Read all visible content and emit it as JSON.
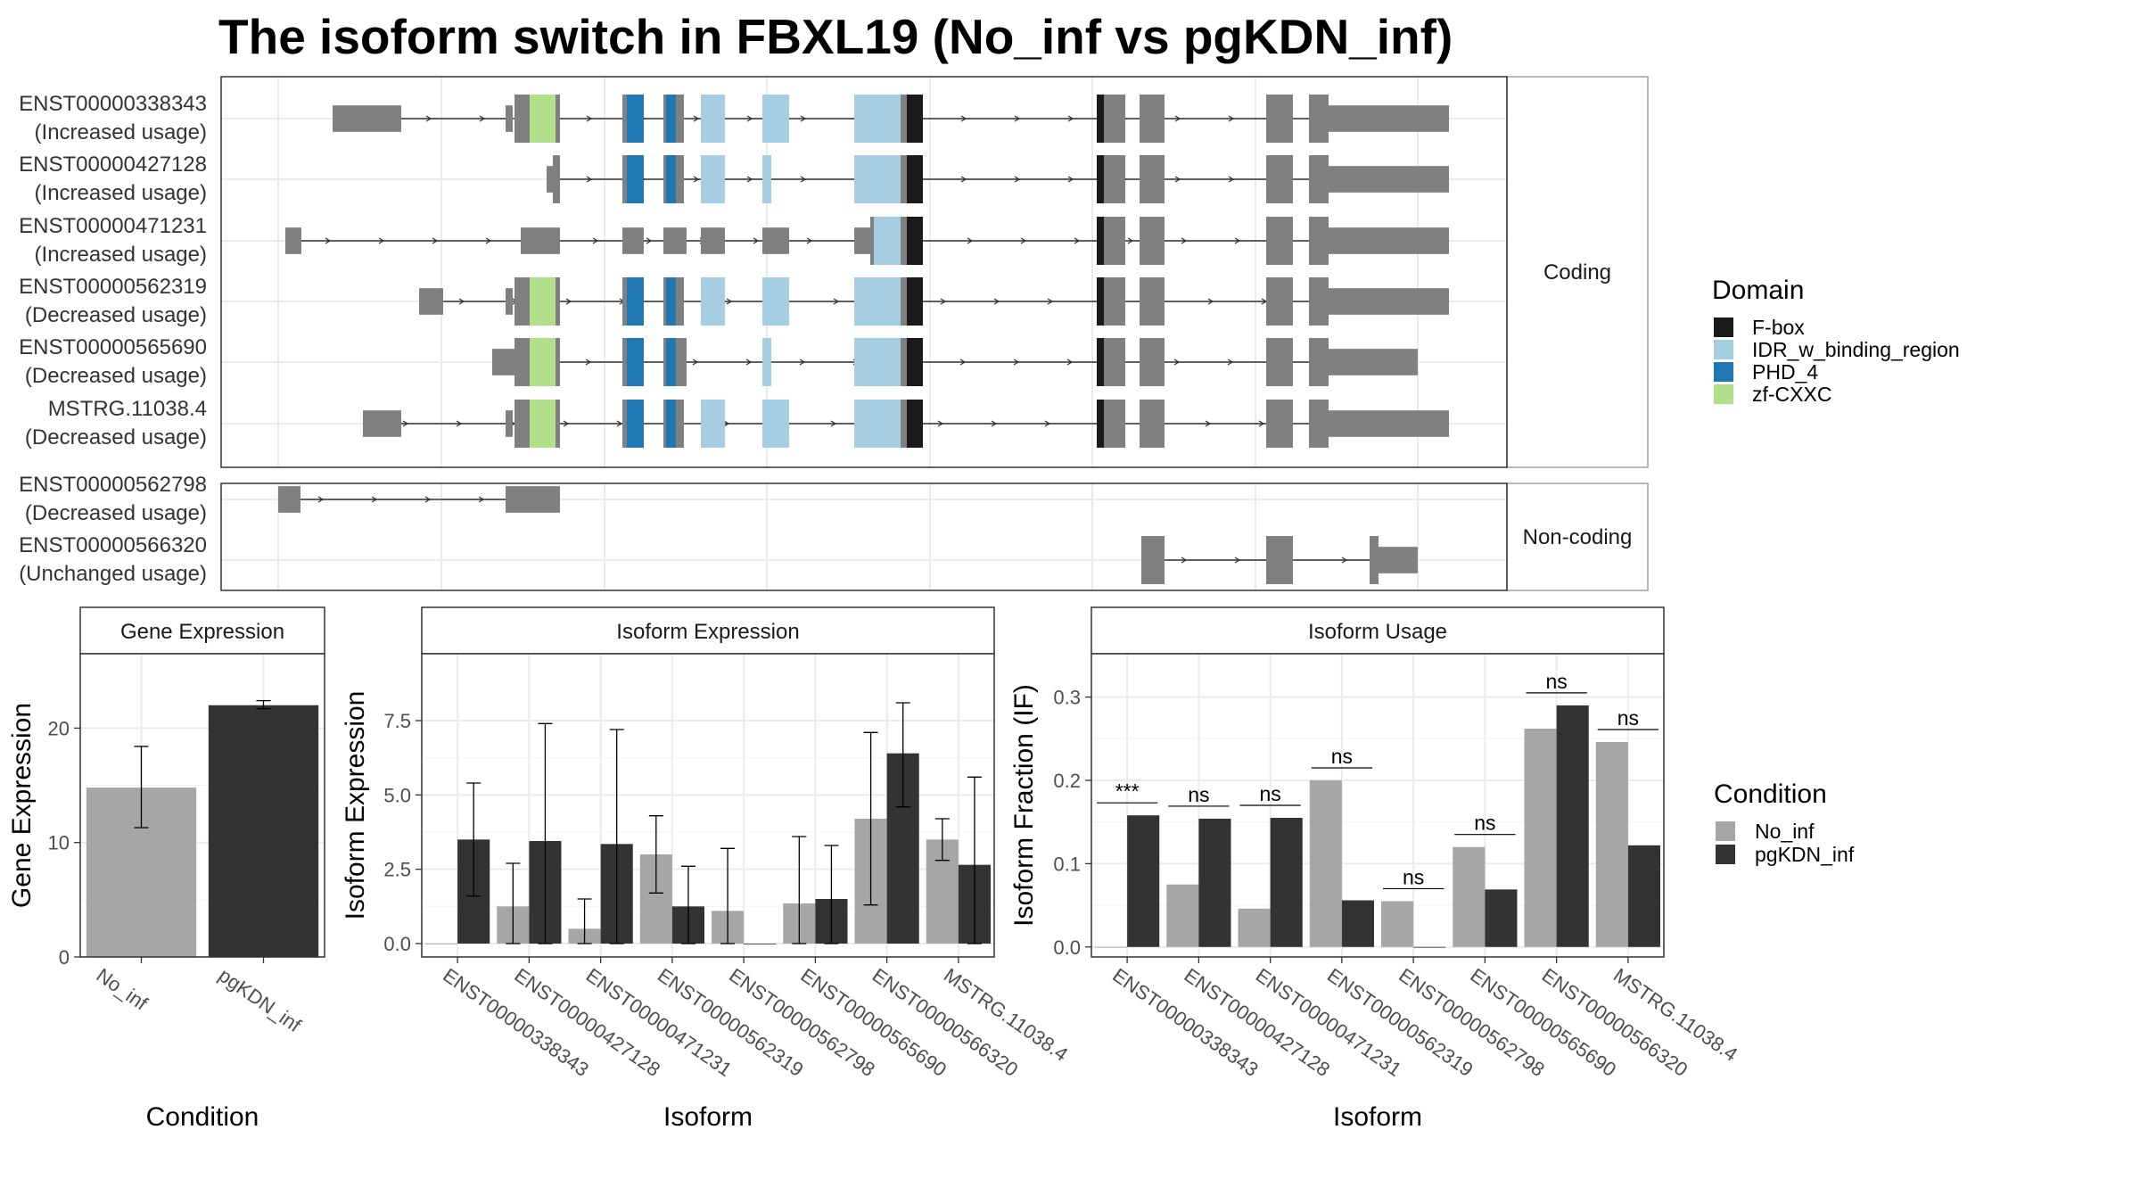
{
  "title": "The isoform switch in FBXL19 (No_inf vs pgKDN_inf)",
  "colors": {
    "exon": "#808080",
    "F-box": "#1a1a1a",
    "IDR_w_binding_region": "#a6cee3",
    "PHD_4": "#1f78b4",
    "zf-CXXC": "#b2df8a",
    "No_inf": "#a6a6a6",
    "pgKDN_inf": "#333333"
  },
  "legends": {
    "domain": {
      "title": "Domain",
      "items": [
        "F-box",
        "IDR_w_binding_region",
        "PHD_4",
        "zf-CXXC"
      ]
    },
    "condition": {
      "title": "Condition",
      "items": [
        "No_inf",
        "pgKDN_inf"
      ]
    }
  },
  "structure": {
    "strips": [
      "Coding",
      "Non-coding"
    ],
    "transcripts": [
      {
        "id": "ENST00000338343",
        "note": "(Increased usage)",
        "group": "Coding",
        "exons": [
          [
            230,
            330,
            0.55
          ],
          [
            400,
            420,
            0.55
          ],
          [
            420,
            430,
            1
          ],
          [
            430,
            450,
            1
          ],
          [
            450,
            460,
            0.8
          ],
          [
            560,
            565,
            1
          ],
          [
            565,
            590,
            1
          ],
          [
            620,
            630,
            1
          ],
          [
            630,
            640,
            1
          ],
          [
            640,
            650,
            1
          ],
          [
            670,
            710,
            1
          ],
          [
            760,
            800,
            1
          ],
          [
            860,
            945,
            1
          ],
          [
            945,
            955,
            1
          ],
          [
            955,
            965,
            1
          ],
          [
            965,
            990,
            1
          ],
          [
            1230,
            1245,
            1
          ],
          [
            1245,
            1275,
            1
          ],
          [
            1290,
            1325,
            1
          ],
          [
            1400,
            1440,
            1
          ],
          [
            1460,
            1490,
            1
          ],
          [
            1490,
            1690,
            0.55
          ]
        ],
        "domains": [
          [
            "zf-CXXC",
            0,
            0
          ],
          [
            "PHD_4",
            0,
            0
          ],
          [
            "IDR_w_binding_region",
            0,
            0
          ],
          [
            "F-box",
            0,
            0
          ]
        ]
      },
      {
        "id": "ENST00000427128",
        "note": "(Increased usage)",
        "group": "Coding"
      },
      {
        "id": "ENST00000471231",
        "note": "(Increased usage)",
        "group": "Coding"
      },
      {
        "id": "ENST00000562319",
        "note": "(Decreased usage)",
        "group": "Coding"
      },
      {
        "id": "ENST00000565690",
        "note": "(Decreased usage)",
        "group": "Coding"
      },
      {
        "id": "MSTRG.11038.4",
        "note": "(Decreased usage)",
        "group": "Coding"
      },
      {
        "id": "ENST00000562798",
        "note": "(Decreased usage)",
        "group": "Non-coding"
      },
      {
        "id": "ENST00000566320",
        "note": "(Unchanged usage)",
        "group": "Non-coding"
      }
    ]
  },
  "chart_data": [
    {
      "type": "bar",
      "title": "Gene Expression",
      "xlabel": "Condition",
      "ylabel": "Gene Expression",
      "categories": [
        "No_inf",
        "pgKDN_inf"
      ],
      "values": [
        14.8,
        22.0
      ],
      "error": [
        [
          11.3,
          18.4
        ],
        [
          21.7,
          22.4
        ]
      ],
      "ylim": [
        0,
        26.5
      ],
      "yticks": [
        0,
        10,
        20
      ]
    },
    {
      "type": "bar",
      "title": "Isoform Expression",
      "xlabel": "Isoform",
      "ylabel": "Isoform Expression",
      "categories": [
        "ENST00000338343",
        "ENST00000427128",
        "ENST00000471231",
        "ENST00000562319",
        "ENST00000562798",
        "ENST00000565690",
        "ENST00000566320",
        "MSTRG.11038.4"
      ],
      "series": [
        {
          "name": "No_inf",
          "values": [
            0.0,
            1.25,
            0.5,
            3.0,
            1.1,
            1.35,
            4.2,
            3.5
          ],
          "error_low": [
            0.0,
            0.0,
            0.0,
            1.7,
            0.0,
            0.0,
            1.3,
            2.8
          ],
          "error_high": [
            0.0,
            2.7,
            1.5,
            4.3,
            3.2,
            3.6,
            7.1,
            4.2
          ]
        },
        {
          "name": "pgKDN_inf",
          "values": [
            3.5,
            3.45,
            3.35,
            1.25,
            0.0,
            1.5,
            6.4,
            2.65
          ],
          "error_low": [
            1.6,
            0.0,
            0.0,
            0.0,
            0.0,
            0.0,
            4.6,
            0.0
          ],
          "error_high": [
            5.4,
            7.4,
            7.2,
            2.6,
            0.0,
            3.3,
            8.1,
            5.6
          ]
        }
      ],
      "ylim": [
        -0.45,
        9.75
      ],
      "yticks": [
        0.0,
        2.5,
        5.0,
        7.5
      ],
      "yticklabels": [
        "0.0",
        "2.5",
        "5.0",
        "7.5"
      ]
    },
    {
      "type": "bar",
      "title": "Isoform Usage",
      "xlabel": "Isoform",
      "ylabel": "Isoform Fraction (IF)",
      "categories": [
        "ENST00000338343",
        "ENST00000427128",
        "ENST00000471231",
        "ENST00000562319",
        "ENST00000562798",
        "ENST00000565690",
        "ENST00000566320",
        "MSTRG.11038.4"
      ],
      "series": [
        {
          "name": "No_inf",
          "values": [
            0.0,
            0.075,
            0.046,
            0.2,
            0.055,
            0.12,
            0.262,
            0.246
          ]
        },
        {
          "name": "pgKDN_inf",
          "values": [
            0.158,
            0.154,
            0.155,
            0.056,
            0.0,
            0.069,
            0.29,
            0.122
          ]
        }
      ],
      "significance": [
        "***",
        "ns",
        "ns",
        "ns",
        "ns",
        "ns",
        "ns",
        "ns"
      ],
      "ylim": [
        -0.012,
        0.352
      ],
      "yticks": [
        0.0,
        0.1,
        0.2,
        0.3
      ],
      "yticklabels": [
        "0.0",
        "0.1",
        "0.2",
        "0.3"
      ]
    }
  ]
}
